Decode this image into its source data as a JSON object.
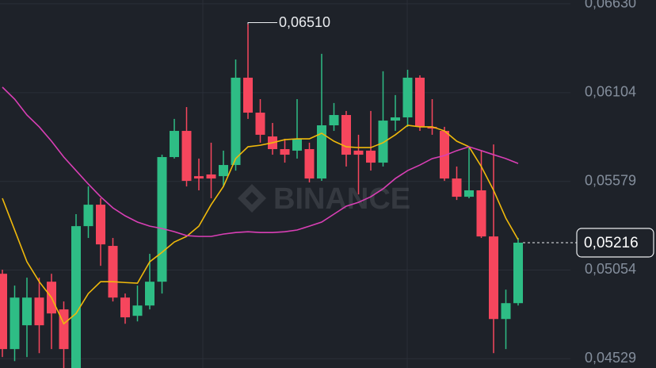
{
  "chart_data": {
    "type": "candlestick",
    "watermark": "BINANCE",
    "up_color": "#2ebd85",
    "down_color": "#f6465d",
    "ylim": [
      0.04474,
      0.06653
    ],
    "yticks": [
      {
        "value": 0.0663,
        "label": "0,06630"
      },
      {
        "value": 0.06104,
        "label": "0,06104"
      },
      {
        "value": 0.05579,
        "label": "0,05579"
      },
      {
        "value": 0.05054,
        "label": "0,05054"
      },
      {
        "value": 0.04529,
        "label": "0,04529"
      }
    ],
    "grid": true,
    "open": [
      0.05032,
      0.04586,
      0.04727,
      0.04891,
      0.04985,
      0.04821,
      0.04474,
      0.05314,
      0.05441,
      0.05197,
      0.04891,
      0.04783,
      0.04844,
      0.04985,
      0.05723,
      0.05878,
      0.0561,
      0.0562,
      0.0561,
      0.05676,
      0.06193,
      0.05986,
      0.05845,
      0.0577,
      0.05761,
      0.0577,
      0.05596,
      0.05911,
      0.05972,
      0.05761,
      0.05761,
      0.0569,
      0.05939,
      0.05958,
      0.06193,
      0.05902,
      0.05878,
      0.05596,
      0.05488,
      0.05526,
      0.05253,
      0.04764,
      0.04858
    ],
    "high": [
      0.05056,
      0.04962,
      0.05009,
      0.05009,
      0.05032,
      0.04868,
      0.05385,
      0.05549,
      0.05479,
      0.05244,
      0.04915,
      0.04962,
      0.0515,
      0.05737,
      0.05949,
      0.06019,
      0.05714,
      0.05808,
      0.05761,
      0.06301,
      0.0651,
      0.06066,
      0.05925,
      0.05831,
      0.06066,
      0.05808,
      0.06334,
      0.06043,
      0.05996,
      0.05855,
      0.05996,
      0.06231,
      0.0609,
      0.0624,
      0.06207,
      0.06066,
      0.05902,
      0.05667,
      0.05784,
      0.05761,
      0.05798,
      0.04938,
      0.05244
    ],
    "low": [
      0.04539,
      0.04515,
      0.04539,
      0.04562,
      0.04586,
      0.04474,
      0.04474,
      0.05244,
      0.05079,
      0.04868,
      0.04736,
      0.0475,
      0.04821,
      0.04915,
      0.05714,
      0.05549,
      0.05526,
      0.05479,
      0.05549,
      0.05643,
      0.05949,
      0.05808,
      0.05737,
      0.0569,
      0.05714,
      0.05573,
      0.05582,
      0.05878,
      0.05667,
      0.05502,
      0.05643,
      0.05667,
      0.05878,
      0.05902,
      0.05878,
      0.05855,
      0.05582,
      0.05469,
      0.05479,
      0.05244,
      0.04562,
      0.04586,
      0.04844
    ],
    "close": [
      0.04586,
      0.04891,
      0.04891,
      0.04727,
      0.04797,
      0.04586,
      0.05314,
      0.05441,
      0.05206,
      0.04891,
      0.04774,
      0.04844,
      0.04985,
      0.05723,
      0.05878,
      0.05582,
      0.05596,
      0.05596,
      0.05676,
      0.06193,
      0.05986,
      0.05855,
      0.0577,
      0.05737,
      0.05831,
      0.05596,
      0.05911,
      0.05972,
      0.05737,
      0.05737,
      0.0569,
      0.05939,
      0.05958,
      0.06193,
      0.05902,
      0.05892,
      0.05596,
      0.05488,
      0.05526,
      0.05253,
      0.04764,
      0.04858,
      0.05216
    ],
    "series": [
      {
        "color": "#f0b90b",
        "values": [
          0.05479,
          0.05291,
          0.05103,
          0.04985,
          0.04891,
          0.04736,
          0.04797,
          0.04915,
          0.04985,
          0.04985,
          0.0498,
          0.04976,
          0.05103,
          0.05159,
          0.0522,
          0.05253,
          0.05314,
          0.05441,
          0.05549,
          0.05714,
          0.05784,
          0.05793,
          0.05808,
          0.05826,
          0.05831,
          0.05831,
          0.05864,
          0.05817,
          0.05784,
          0.05779,
          0.05779,
          0.05808,
          0.05855,
          0.05911,
          0.05902,
          0.05902,
          0.05878,
          0.05817,
          0.05784,
          0.05667,
          0.05526,
          0.05361,
          0.05234
        ]
      },
      {
        "color": "#d93fb5",
        "values": [
          0.06137,
          0.06066,
          0.05972,
          0.05902,
          0.05817,
          0.05723,
          0.05643,
          0.05563,
          0.05488,
          0.05422,
          0.05375,
          0.05338,
          0.05314,
          0.053,
          0.05281,
          0.05258,
          0.05253,
          0.05253,
          0.05267,
          0.05276,
          0.05281,
          0.05276,
          0.05276,
          0.05281,
          0.05291,
          0.05314,
          0.05338,
          0.05385,
          0.05432,
          0.05455,
          0.05488,
          0.05535,
          0.05596,
          0.05643,
          0.05676,
          0.05714,
          0.05732,
          0.05761,
          0.05784,
          0.05761,
          0.05737,
          0.05714,
          0.05685
        ]
      }
    ],
    "annotations": [
      {
        "text": "0,06510",
        "index": 20,
        "value": 0.0651
      },
      {
        "text": "0,05216",
        "index": 42,
        "value": 0.05216
      }
    ]
  }
}
